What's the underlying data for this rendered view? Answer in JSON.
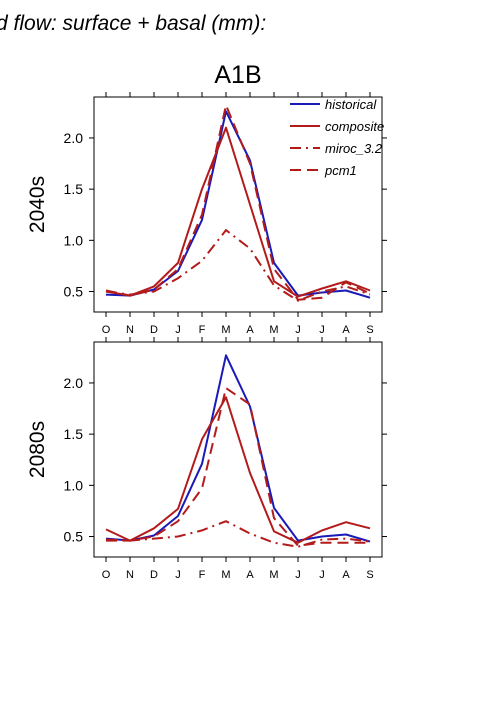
{
  "figure": {
    "title": "d flow: surface + basal (mm):"
  },
  "chart_data": [
    {
      "type": "line",
      "scenario": "A1B",
      "row_label": "2040s",
      "categories": [
        "O",
        "N",
        "D",
        "J",
        "F",
        "M",
        "A",
        "M",
        "J",
        "J",
        "A",
        "S"
      ],
      "ylim": [
        0.3,
        2.4
      ],
      "yticks": [
        0.5,
        1.0,
        1.5,
        2.0
      ],
      "ytick_labels": [
        "0.5",
        "1.0",
        "1.5",
        "2.0"
      ],
      "grid": false,
      "legend_position": "top-right",
      "series": [
        {
          "name": "historical",
          "color": "#1a1ab8",
          "style": "solid",
          "values": [
            0.47,
            0.46,
            0.52,
            0.7,
            1.2,
            2.26,
            1.78,
            0.78,
            0.46,
            0.49,
            0.51,
            0.44
          ]
        },
        {
          "name": "composite",
          "color": "#b31b1b",
          "style": "solid",
          "values": [
            0.5,
            0.46,
            0.55,
            0.78,
            1.5,
            2.1,
            1.35,
            0.6,
            0.45,
            0.53,
            0.6,
            0.51
          ]
        },
        {
          "name": "miroc_3.2",
          "color": "#b31b1b",
          "style": "dashdot",
          "values": [
            0.5,
            0.47,
            0.5,
            0.63,
            0.8,
            1.1,
            0.92,
            0.56,
            0.41,
            0.5,
            0.55,
            0.47
          ]
        },
        {
          "name": "pcm1",
          "color": "#b31b1b",
          "style": "dashed",
          "values": [
            0.51,
            0.46,
            0.52,
            0.72,
            1.25,
            2.32,
            1.75,
            0.72,
            0.42,
            0.44,
            0.59,
            0.48
          ]
        }
      ]
    },
    {
      "type": "line",
      "scenario": "",
      "row_label": "2080s",
      "categories": [
        "O",
        "N",
        "D",
        "J",
        "F",
        "M",
        "A",
        "M",
        "J",
        "J",
        "A",
        "S"
      ],
      "ylim": [
        0.3,
        2.4
      ],
      "yticks": [
        0.5,
        1.0,
        1.5,
        2.0
      ],
      "ytick_labels": [
        "0.5",
        "1.0",
        "1.5",
        "2.0"
      ],
      "grid": false,
      "legend_position": "",
      "series": [
        {
          "name": "historical",
          "color": "#1a1ab8",
          "style": "solid",
          "values": [
            0.48,
            0.46,
            0.51,
            0.7,
            1.21,
            2.27,
            1.77,
            0.78,
            0.46,
            0.5,
            0.52,
            0.45
          ]
        },
        {
          "name": "composite",
          "color": "#b31b1b",
          "style": "solid",
          "values": [
            0.57,
            0.46,
            0.58,
            0.77,
            1.45,
            1.86,
            1.12,
            0.55,
            0.44,
            0.56,
            0.64,
            0.58
          ]
        },
        {
          "name": "miroc_3.2",
          "color": "#b31b1b",
          "style": "dashdot",
          "values": [
            0.47,
            0.46,
            0.48,
            0.5,
            0.56,
            0.65,
            0.53,
            0.44,
            0.4,
            0.47,
            0.48,
            0.45
          ]
        },
        {
          "name": "pcm1",
          "color": "#b31b1b",
          "style": "dashed",
          "values": [
            0.46,
            0.46,
            0.5,
            0.65,
            0.97,
            1.95,
            1.79,
            0.68,
            0.41,
            0.44,
            0.44,
            0.44
          ]
        }
      ]
    }
  ]
}
